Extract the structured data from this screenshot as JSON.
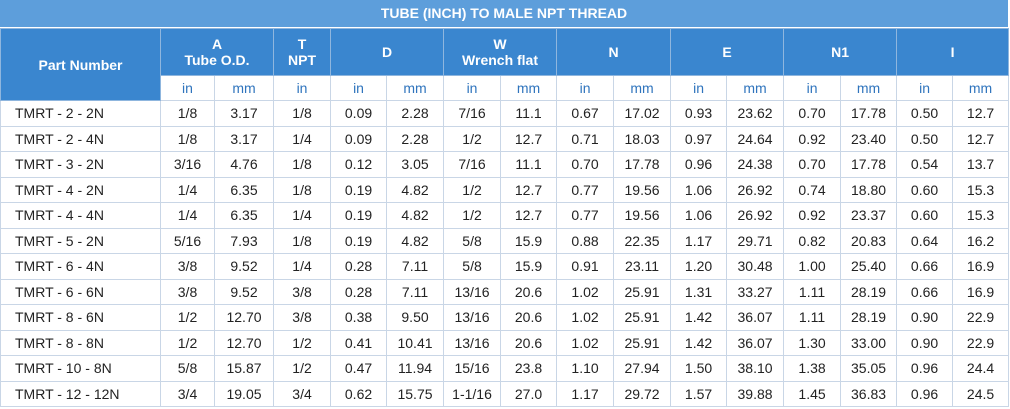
{
  "title": "TUBE (INCH) TO MALE NPT THREAD",
  "table": {
    "part_header": "Part Number",
    "groups": [
      {
        "letter": "A",
        "label": "Tube O.D."
      },
      {
        "letter": "T",
        "label": "NPT"
      },
      {
        "letter": "D"
      },
      {
        "letter": "W",
        "label": "Wrench flat"
      },
      {
        "letter": "N"
      },
      {
        "letter": "E"
      },
      {
        "letter": "N1"
      },
      {
        "letter": "I"
      }
    ],
    "units": [
      [
        "in",
        "mm"
      ],
      [
        "in"
      ],
      [
        "in",
        "mm"
      ],
      [
        "in",
        "mm"
      ],
      [
        "in",
        "mm"
      ],
      [
        "in",
        "mm"
      ],
      [
        "in",
        "mm"
      ],
      [
        "in",
        "mm"
      ]
    ],
    "rows": [
      [
        "TMRT - 2 - 2N",
        "1/8",
        "3.17",
        "1/8",
        "0.09",
        "2.28",
        "7/16",
        "11.1",
        "0.67",
        "17.02",
        "0.93",
        "23.62",
        "0.70",
        "17.78",
        "0.50",
        "12.7"
      ],
      [
        "TMRT - 2 - 4N",
        "1/8",
        "3.17",
        "1/4",
        "0.09",
        "2.28",
        "1/2",
        "12.7",
        "0.71",
        "18.03",
        "0.97",
        "24.64",
        "0.92",
        "23.40",
        "0.50",
        "12.7"
      ],
      [
        "TMRT - 3 - 2N",
        "3/16",
        "4.76",
        "1/8",
        "0.12",
        "3.05",
        "7/16",
        "11.1",
        "0.70",
        "17.78",
        "0.96",
        "24.38",
        "0.70",
        "17.78",
        "0.54",
        "13.7"
      ],
      [
        "TMRT - 4 - 2N",
        "1/4",
        "6.35",
        "1/8",
        "0.19",
        "4.82",
        "1/2",
        "12.7",
        "0.77",
        "19.56",
        "1.06",
        "26.92",
        "0.74",
        "18.80",
        "0.60",
        "15.3"
      ],
      [
        "TMRT - 4 - 4N",
        "1/4",
        "6.35",
        "1/4",
        "0.19",
        "4.82",
        "1/2",
        "12.7",
        "0.77",
        "19.56",
        "1.06",
        "26.92",
        "0.92",
        "23.37",
        "0.60",
        "15.3"
      ],
      [
        "TMRT - 5 - 2N",
        "5/16",
        "7.93",
        "1/8",
        "0.19",
        "4.82",
        "5/8",
        "15.9",
        "0.88",
        "22.35",
        "1.17",
        "29.71",
        "0.82",
        "20.83",
        "0.64",
        "16.2"
      ],
      [
        "TMRT - 6 - 4N",
        "3/8",
        "9.52",
        "1/4",
        "0.28",
        "7.11",
        "5/8",
        "15.9",
        "0.91",
        "23.11",
        "1.20",
        "30.48",
        "1.00",
        "25.40",
        "0.66",
        "16.9"
      ],
      [
        "TMRT - 6 - 6N",
        "3/8",
        "9.52",
        "3/8",
        "0.28",
        "7.11",
        "13/16",
        "20.6",
        "1.02",
        "25.91",
        "1.31",
        "33.27",
        "1.11",
        "28.19",
        "0.66",
        "16.9"
      ],
      [
        "TMRT - 8 - 6N",
        "1/2",
        "12.70",
        "3/8",
        "0.38",
        "9.50",
        "13/16",
        "20.6",
        "1.02",
        "25.91",
        "1.42",
        "36.07",
        "1.11",
        "28.19",
        "0.90",
        "22.9"
      ],
      [
        "TMRT - 8 - 8N",
        "1/2",
        "12.70",
        "1/2",
        "0.41",
        "10.41",
        "13/16",
        "20.6",
        "1.02",
        "25.91",
        "1.42",
        "36.07",
        "1.30",
        "33.00",
        "0.90",
        "22.9"
      ],
      [
        "TMRT - 10 - 8N",
        "5/8",
        "15.87",
        "1/2",
        "0.47",
        "11.94",
        "15/16",
        "23.8",
        "1.10",
        "27.94",
        "1.50",
        "38.10",
        "1.38",
        "35.05",
        "0.96",
        "24.4"
      ],
      [
        "TMRT - 12 - 12N",
        "3/4",
        "19.05",
        "3/4",
        "0.62",
        "15.75",
        "1-1/16",
        "27.0",
        "1.17",
        "29.72",
        "1.57",
        "39.88",
        "1.45",
        "36.83",
        "0.96",
        "24.5"
      ]
    ]
  }
}
